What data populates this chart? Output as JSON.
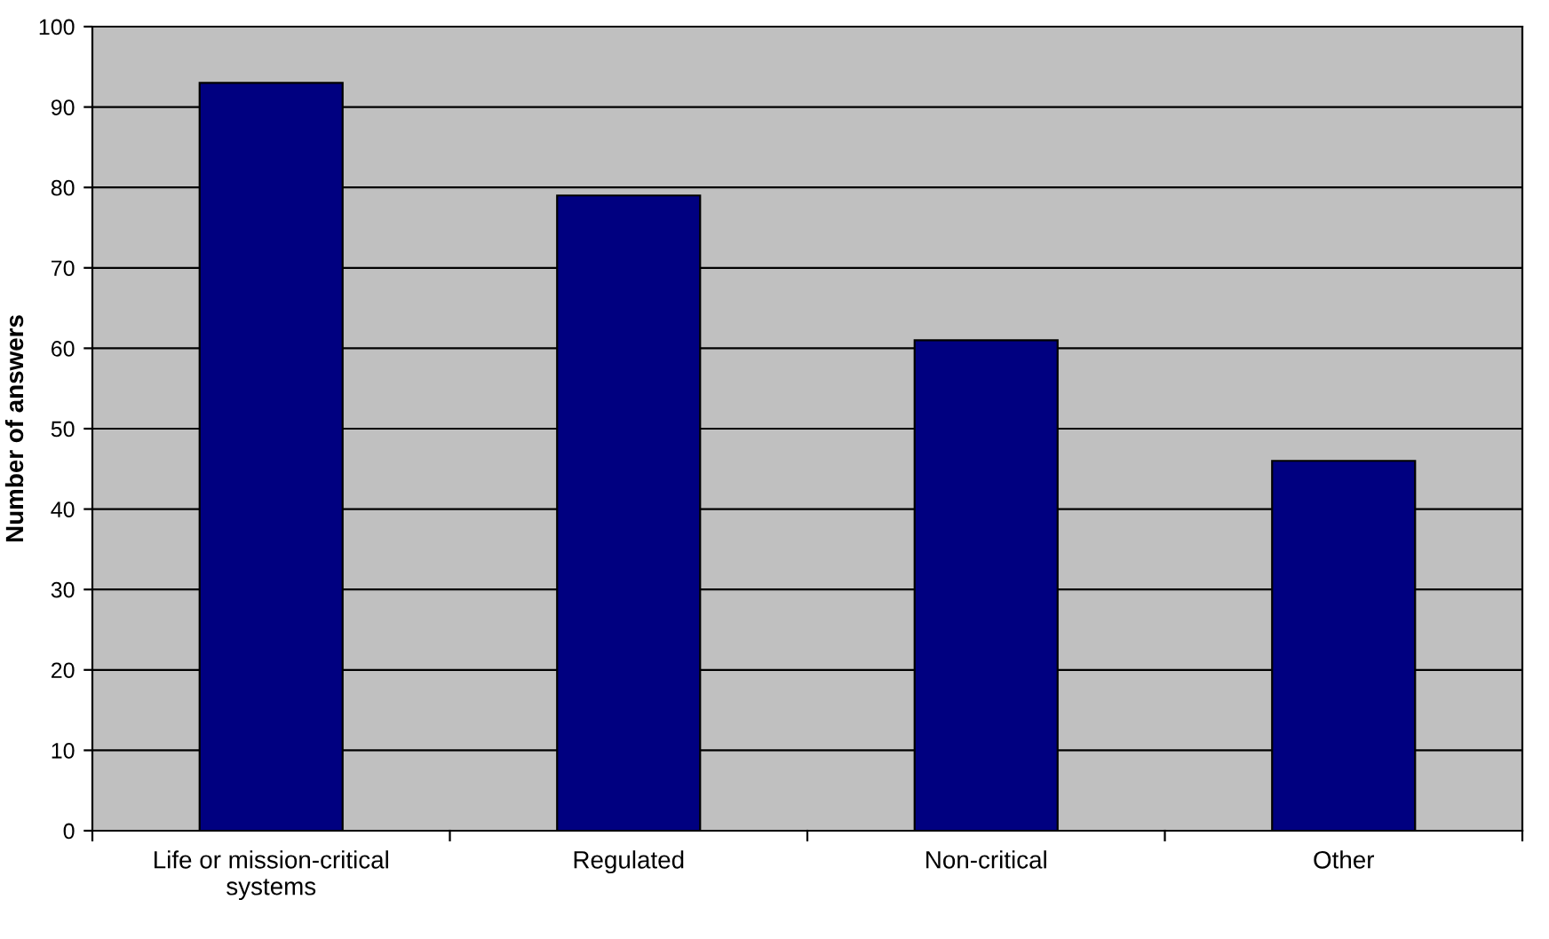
{
  "chart_data": {
    "type": "bar",
    "categories": [
      "Life or mission-critical\nsystems",
      "Regulated",
      "Non-critical",
      "Other"
    ],
    "values": [
      93,
      79,
      61,
      46
    ],
    "color": "#000080",
    "ylabel": "Number of answers",
    "ylim": [
      0,
      100
    ],
    "yticks": [
      0,
      10,
      20,
      30,
      40,
      50,
      60,
      70,
      80,
      90,
      100
    ],
    "grid": "y"
  }
}
